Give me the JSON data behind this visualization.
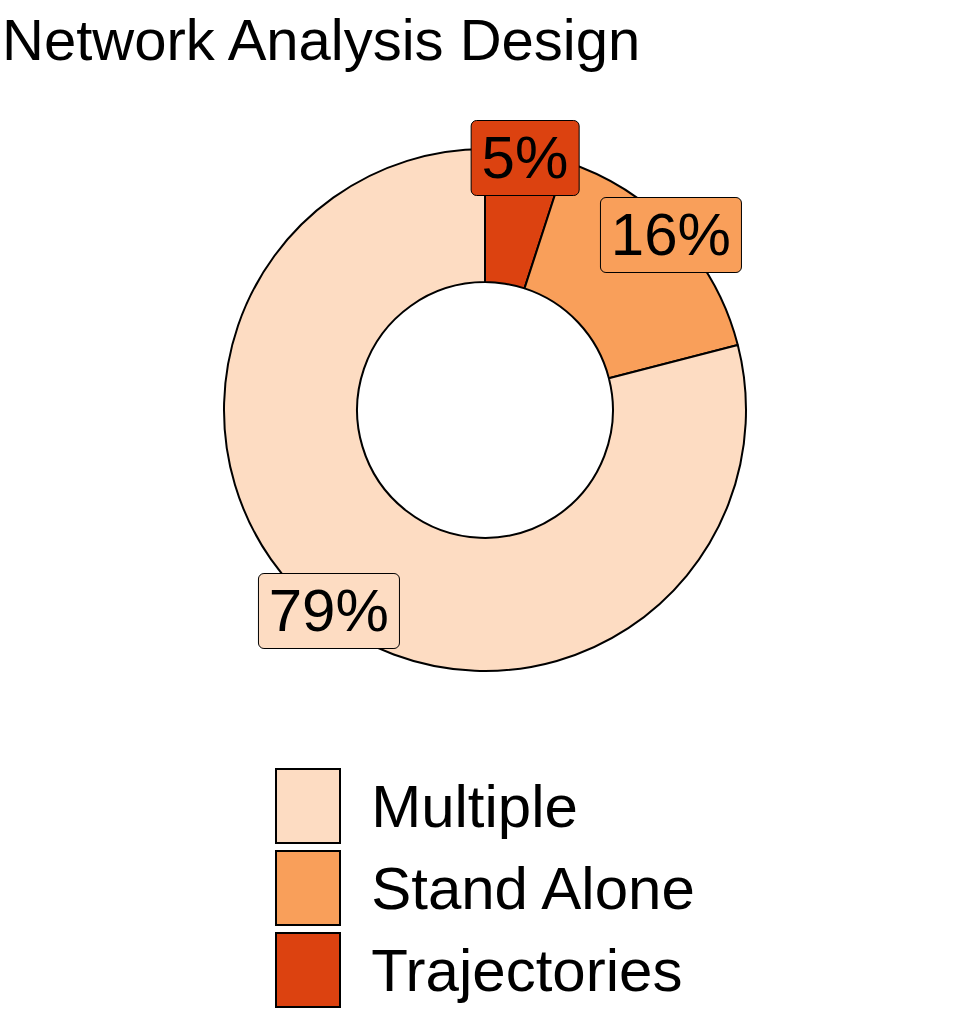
{
  "chart_data": {
    "type": "donut",
    "title": "Network Analysis Design",
    "categories": [
      "Multiple",
      "Stand Alone",
      "Trajectories"
    ],
    "values": [
      79,
      16,
      5
    ],
    "colors": [
      "#fddcc2",
      "#f99f5a",
      "#dc4210"
    ],
    "value_labels": [
      "79%",
      "16%",
      "5%"
    ],
    "legend": "bottom"
  }
}
